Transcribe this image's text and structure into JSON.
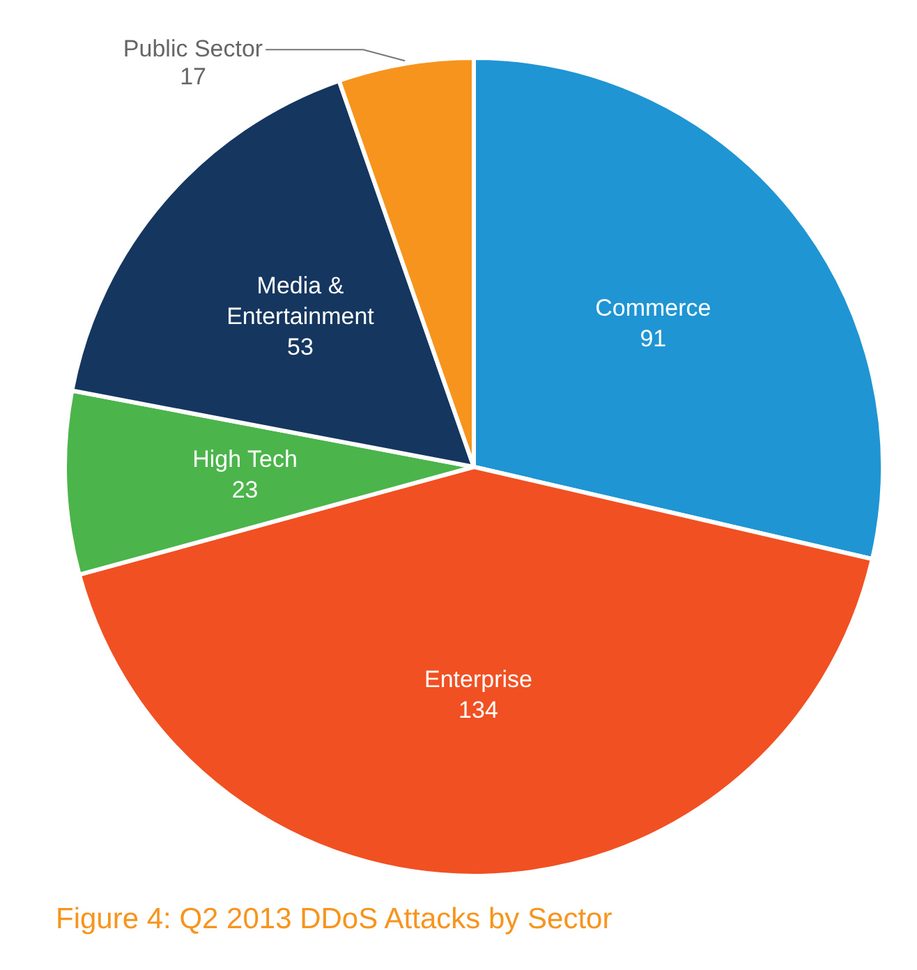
{
  "chart_data": {
    "type": "pie",
    "title": "Figure 4: Q2 2013 DDoS Attacks by Sector",
    "categories": [
      "Commerce",
      "Enterprise",
      "High Tech",
      "Media & Entertainment",
      "Public Sector"
    ],
    "values": [
      91,
      134,
      23,
      53,
      17
    ],
    "colors": [
      "#1f95d3",
      "#f15122",
      "#4bb44a",
      "#15365e",
      "#f7941d"
    ],
    "data_labels": true,
    "legend": false
  }
}
